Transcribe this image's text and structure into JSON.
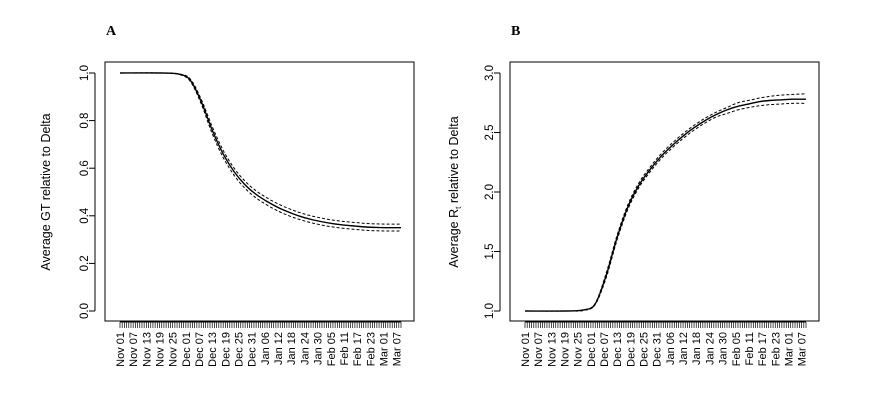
{
  "chart_data": [
    {
      "type": "line",
      "panel_label": "A",
      "ylabel": "Average GT relative to Delta",
      "ylabel_subscript": "",
      "ylabel_suffix": "",
      "ylim": [
        0.0,
        1.0
      ],
      "yticks": [
        "0.0",
        "0.2",
        "0.4",
        "0.6",
        "0.8",
        "1.0"
      ],
      "x_date_range": [
        "2021-11-01",
        "2022-03-09"
      ],
      "x_tick_labels": [
        "Nov 01",
        "Nov 07",
        "Nov 13",
        "Nov 19",
        "Nov 25",
        "Dec 01",
        "Dec 07",
        "Dec 13",
        "Dec 19",
        "Dec 25",
        "Dec 31",
        "Jan 06",
        "Jan 12",
        "Jan 18",
        "Jan 24",
        "Jan 30",
        "Feb 05",
        "Feb 11",
        "Feb 17",
        "Feb 23",
        "Mar 01",
        "Mar 07"
      ],
      "series": [
        {
          "style": "solid",
          "x": [
            "2021-11-01",
            "2021-11-20",
            "2021-11-28",
            "2021-12-03",
            "2021-12-08",
            "2021-12-13",
            "2021-12-18",
            "2021-12-23",
            "2021-12-28",
            "2022-01-02",
            "2022-01-07",
            "2022-01-12",
            "2022-01-17",
            "2022-01-22",
            "2022-01-27",
            "2022-02-01",
            "2022-02-06",
            "2022-02-11",
            "2022-02-16",
            "2022-02-21",
            "2022-02-26",
            "2022-03-03",
            "2022-03-09"
          ],
          "values": [
            1.0,
            1.0,
            0.995,
            0.97,
            0.88,
            0.76,
            0.66,
            0.585,
            0.53,
            0.49,
            0.46,
            0.435,
            0.415,
            0.398,
            0.385,
            0.375,
            0.367,
            0.361,
            0.357,
            0.353,
            0.351,
            0.35,
            0.35
          ]
        },
        {
          "style": "dashed",
          "x": [
            "2021-11-01",
            "2021-11-20",
            "2021-11-28",
            "2021-12-03",
            "2021-12-08",
            "2021-12-13",
            "2021-12-18",
            "2021-12-23",
            "2021-12-28",
            "2022-01-02",
            "2022-01-07",
            "2022-01-12",
            "2022-01-17",
            "2022-01-22",
            "2022-01-27",
            "2022-02-01",
            "2022-02-06",
            "2022-02-11",
            "2022-02-16",
            "2022-02-21",
            "2022-02-26",
            "2022-03-03",
            "2022-03-09"
          ],
          "values": [
            1.0,
            1.0,
            0.996,
            0.975,
            0.89,
            0.775,
            0.675,
            0.6,
            0.545,
            0.505,
            0.475,
            0.45,
            0.43,
            0.413,
            0.4,
            0.39,
            0.382,
            0.376,
            0.372,
            0.368,
            0.366,
            0.365,
            0.365
          ]
        },
        {
          "style": "dashed",
          "x": [
            "2021-11-01",
            "2021-11-20",
            "2021-11-28",
            "2021-12-03",
            "2021-12-08",
            "2021-12-13",
            "2021-12-18",
            "2021-12-23",
            "2021-12-28",
            "2022-01-02",
            "2022-01-07",
            "2022-01-12",
            "2022-01-17",
            "2022-01-22",
            "2022-01-27",
            "2022-02-01",
            "2022-02-06",
            "2022-02-11",
            "2022-02-16",
            "2022-02-21",
            "2022-02-26",
            "2022-03-03",
            "2022-03-09"
          ],
          "values": [
            1.0,
            1.0,
            0.994,
            0.965,
            0.87,
            0.745,
            0.645,
            0.57,
            0.515,
            0.475,
            0.445,
            0.42,
            0.4,
            0.384,
            0.371,
            0.361,
            0.353,
            0.347,
            0.343,
            0.339,
            0.337,
            0.336,
            0.336
          ]
        }
      ]
    },
    {
      "type": "line",
      "panel_label": "B",
      "ylabel": "Average R",
      "ylabel_subscript": "t",
      "ylabel_suffix": " relative to Delta",
      "ylim": [
        1.0,
        3.0
      ],
      "yticks": [
        "1.0",
        "1.5",
        "2.0",
        "2.5",
        "3.0"
      ],
      "x_date_range": [
        "2021-11-01",
        "2022-03-09"
      ],
      "x_tick_labels": [
        "Nov 01",
        "Nov 07",
        "Nov 13",
        "Nov 19",
        "Nov 25",
        "Dec 01",
        "Dec 07",
        "Dec 13",
        "Dec 19",
        "Dec 25",
        "Dec 31",
        "Jan 06",
        "Jan 12",
        "Jan 18",
        "Jan 24",
        "Jan 30",
        "Feb 05",
        "Feb 11",
        "Feb 17",
        "Feb 23",
        "Mar 01",
        "Mar 07"
      ],
      "series": [
        {
          "style": "solid",
          "x": [
            "2021-11-01",
            "2021-11-20",
            "2021-11-28",
            "2021-12-03",
            "2021-12-08",
            "2021-12-13",
            "2021-12-18",
            "2021-12-23",
            "2021-12-28",
            "2022-01-02",
            "2022-01-07",
            "2022-01-12",
            "2022-01-17",
            "2022-01-22",
            "2022-01-27",
            "2022-02-01",
            "2022-02-06",
            "2022-02-11",
            "2022-02-16",
            "2022-02-21",
            "2022-02-26",
            "2022-03-03",
            "2022-03-09"
          ],
          "values": [
            1.0,
            1.0,
            1.01,
            1.06,
            1.3,
            1.62,
            1.88,
            2.06,
            2.19,
            2.3,
            2.39,
            2.47,
            2.54,
            2.6,
            2.65,
            2.69,
            2.72,
            2.74,
            2.76,
            2.77,
            2.775,
            2.78,
            2.78
          ]
        },
        {
          "style": "dashed",
          "x": [
            "2021-11-01",
            "2021-11-20",
            "2021-11-28",
            "2021-12-03",
            "2021-12-08",
            "2021-12-13",
            "2021-12-18",
            "2021-12-23",
            "2021-12-28",
            "2022-01-02",
            "2022-01-07",
            "2022-01-12",
            "2022-01-17",
            "2022-01-22",
            "2022-01-27",
            "2022-02-01",
            "2022-02-06",
            "2022-02-11",
            "2022-02-16",
            "2022-02-21",
            "2022-02-26",
            "2022-03-03",
            "2022-03-09"
          ],
          "values": [
            1.0,
            1.0,
            1.01,
            1.065,
            1.32,
            1.64,
            1.9,
            2.08,
            2.21,
            2.32,
            2.41,
            2.49,
            2.56,
            2.62,
            2.67,
            2.71,
            2.75,
            2.77,
            2.79,
            2.805,
            2.815,
            2.82,
            2.825
          ]
        },
        {
          "style": "dashed",
          "x": [
            "2021-11-01",
            "2021-11-20",
            "2021-11-28",
            "2021-12-03",
            "2021-12-08",
            "2021-12-13",
            "2021-12-18",
            "2021-12-23",
            "2021-12-28",
            "2022-01-02",
            "2022-01-07",
            "2022-01-12",
            "2022-01-17",
            "2022-01-22",
            "2022-01-27",
            "2022-02-01",
            "2022-02-06",
            "2022-02-11",
            "2022-02-16",
            "2022-02-21",
            "2022-02-26",
            "2022-03-03",
            "2022-03-09"
          ],
          "values": [
            1.0,
            1.0,
            1.005,
            1.055,
            1.28,
            1.6,
            1.86,
            2.04,
            2.17,
            2.28,
            2.37,
            2.45,
            2.52,
            2.58,
            2.63,
            2.66,
            2.69,
            2.71,
            2.725,
            2.735,
            2.74,
            2.745,
            2.745
          ]
        }
      ]
    }
  ]
}
